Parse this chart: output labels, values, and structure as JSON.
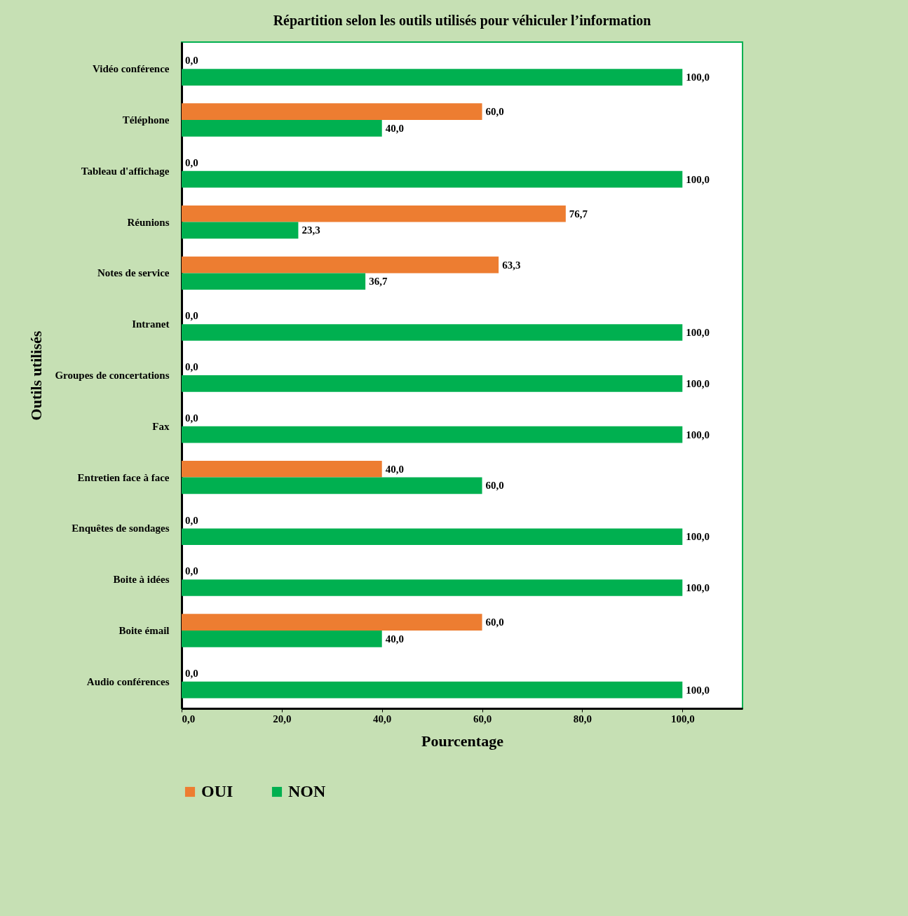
{
  "chart_data": {
    "type": "bar",
    "orientation": "horizontal",
    "title": "Répartition selon les outils utilisés  pour véhiculer l’information",
    "xlabel": "Pourcentage",
    "ylabel": "Outils utilisés",
    "categories": [
      "Vidéo conférence",
      "Téléphone",
      "Tableau d'affichage",
      "Réunions",
      "Notes de service",
      "Intranet",
      "Groupes de concertations",
      "Fax",
      "Entretien face à face",
      "Enquêtes de sondages",
      "Boite à idées",
      "Boite émail",
      "Audio conférences"
    ],
    "series": [
      {
        "name": "OUI",
        "color": "#ed7d31",
        "values": [
          0,
          60,
          0,
          76.7,
          63.3,
          0,
          0,
          0,
          40,
          0,
          0,
          60,
          0
        ],
        "value_labels": [
          "0,0",
          "60,0",
          "0,0",
          "76,7",
          "63,3",
          "0,0",
          "0,0",
          "0,0",
          "40,0",
          "0,0",
          "0,0",
          "60,0",
          "0,0"
        ]
      },
      {
        "name": "NON",
        "color": "#00b050",
        "values": [
          100,
          40,
          100,
          23.3,
          36.7,
          100,
          100,
          100,
          60,
          100,
          100,
          40,
          100
        ],
        "value_labels": [
          "100,0",
          "40,0",
          "100,0",
          "23,3",
          "36,7",
          "100,0",
          "100,0",
          "100,0",
          "60,0",
          "100,0",
          "100,0",
          "40,0",
          "100,0"
        ]
      }
    ],
    "xlim": [
      0,
      112
    ],
    "xticks": [
      {
        "value": 0,
        "label": "0,0"
      },
      {
        "value": 20,
        "label": "20,0"
      },
      {
        "value": 40,
        "label": "40,0"
      },
      {
        "value": 60,
        "label": "60,0"
      },
      {
        "value": 80,
        "label": "80,0"
      },
      {
        "value": 100,
        "label": "100,0"
      }
    ],
    "grid": false,
    "legend": "bottom"
  }
}
